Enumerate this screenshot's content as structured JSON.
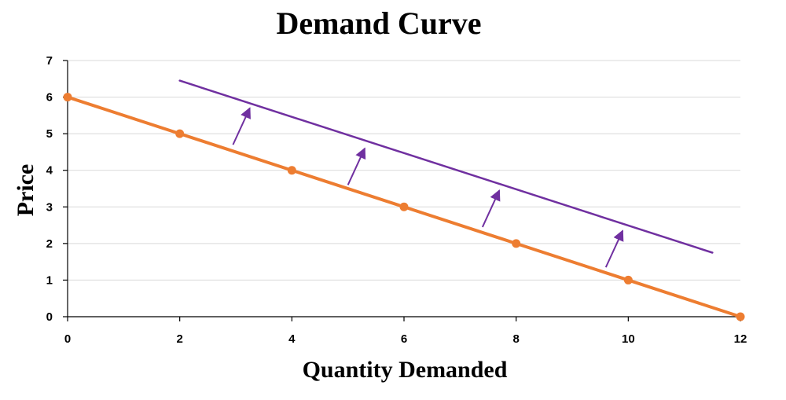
{
  "chart_data": {
    "type": "line",
    "title": "Demand Curve",
    "xlabel": "Quantity Demanded",
    "ylabel": "Price",
    "xlim": [
      0,
      12
    ],
    "ylim": [
      0,
      7
    ],
    "xticks": [
      0,
      2,
      4,
      6,
      8,
      10,
      12
    ],
    "yticks": [
      0,
      1,
      2,
      3,
      4,
      5,
      6,
      7
    ],
    "grid": true,
    "series": [
      {
        "color": "#ED7D31",
        "markers": true,
        "x": [
          0,
          2,
          4,
          6,
          8,
          10,
          12
        ],
        "y": [
          6,
          5,
          4,
          3,
          2,
          1,
          0
        ]
      },
      {
        "color": "#7030A0",
        "markers": false,
        "x": [
          2,
          11.5
        ],
        "y": [
          6.45,
          1.75
        ]
      }
    ],
    "annotations": {
      "type": "arrows",
      "color": "#7030A0",
      "arrows": [
        {
          "from": [
            2.95,
            4.7
          ],
          "to": [
            3.25,
            5.7
          ]
        },
        {
          "from": [
            5.0,
            3.6
          ],
          "to": [
            5.3,
            4.6
          ]
        },
        {
          "from": [
            7.4,
            2.45
          ],
          "to": [
            7.7,
            3.45
          ]
        },
        {
          "from": [
            9.6,
            1.35
          ],
          "to": [
            9.9,
            2.35
          ]
        }
      ]
    }
  }
}
